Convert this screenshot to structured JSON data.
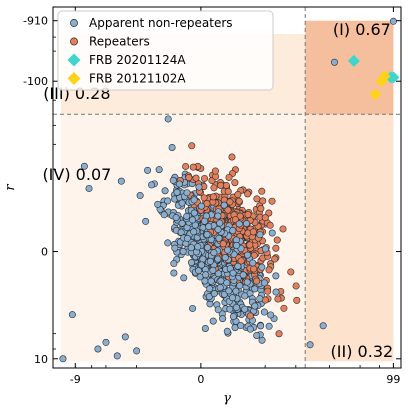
{
  "chart_data": {
    "type": "scatter",
    "xlabel": "γ",
    "ylabel": "r",
    "x_ticks": [
      {
        "value": -9,
        "label": "-9"
      },
      {
        "value": 0,
        "label": "0"
      },
      {
        "value": 99,
        "label": "99"
      }
    ],
    "y_ticks": [
      {
        "value": -910,
        "label": "-910"
      },
      {
        "value": -100,
        "label": "-100"
      },
      {
        "value": 0,
        "label": "0"
      },
      {
        "value": 10,
        "label": "10"
      }
    ],
    "divider": {
      "x": 4.2,
      "y": -30
    },
    "regions": [
      {
        "id": "I",
        "label": "(I) 0.67",
        "color": "#f5bf9e",
        "x_range": [
          4.2,
          99
        ],
        "y_range": [
          -910,
          -30
        ]
      },
      {
        "id": "II",
        "label": "(II) 0.32",
        "color": "#fde2cd",
        "x_range": [
          4.2,
          99
        ],
        "y_range": [
          -30,
          11
        ]
      },
      {
        "id": "III",
        "label": "(III) 0.28",
        "color": "#fdebdc",
        "x_range": [
          -15,
          4.2
        ],
        "y_range": [
          -560,
          -30
        ]
      },
      {
        "id": "IV",
        "label": "(IV) 0.07",
        "color": "#fef4ec",
        "x_range": [
          -15,
          4.2
        ],
        "y_range": [
          -30,
          11
        ]
      }
    ],
    "legend_position": "upper-left",
    "series": [
      {
        "name": "Apparent non-repeaters",
        "marker": "circle",
        "color": "#89aed0",
        "edge": "#2b2b2b",
        "cluster": {
          "count": 520,
          "x_mu": 0.2,
          "x_sigma": 0.36,
          "y_mu": 0.0,
          "y_sigma": 0.6,
          "rho": 0.72
        }
      },
      {
        "name": "Repeaters",
        "marker": "circle",
        "color": "#e2805e",
        "edge": "#2b2b2b",
        "cluster": {
          "count": 360,
          "x_mu": 0.55,
          "x_sigma": 0.3,
          "y_mu": -0.35,
          "y_sigma": 0.45,
          "rho": 0.55
        }
      },
      {
        "name": "FRB 20201124A",
        "marker": "diamond",
        "color": "#3ed6cc",
        "points": [
          {
            "x": 24.0,
            "y": -210
          },
          {
            "x": 90.0,
            "y": -115
          },
          {
            "x": 99.0,
            "y": -115
          }
        ]
      },
      {
        "name": "FRB 20121102A",
        "marker": "diamond",
        "color": "#ffd21a",
        "points": [
          {
            "x": 52.0,
            "y": -62
          },
          {
            "x": 65.0,
            "y": -100
          },
          {
            "x": 72.0,
            "y": -120
          }
        ]
      }
    ],
    "outliers": [
      {
        "x": -14.0,
        "y": 10.0
      },
      {
        "x": -10.0,
        "y": 2.0
      },
      {
        "x": -6.5,
        "y": -4.5
      },
      {
        "x": -4.0,
        "y": 7.0
      },
      {
        "x": -3.0,
        "y": 5.5
      },
      {
        "x": -2.0,
        "y": 9.0
      },
      {
        "x": -5.5,
        "y": -2.0
      },
      {
        "x": -1.5,
        "y": 4.5
      },
      {
        "x": -1.0,
        "y": 7.5
      },
      {
        "x": 5.0,
        "y": 6.0
      },
      {
        "x": 8.0,
        "y": 3.0
      },
      {
        "x": 99.0,
        "y": -890
      },
      {
        "x": 12.0,
        "y": -200
      }
    ]
  }
}
